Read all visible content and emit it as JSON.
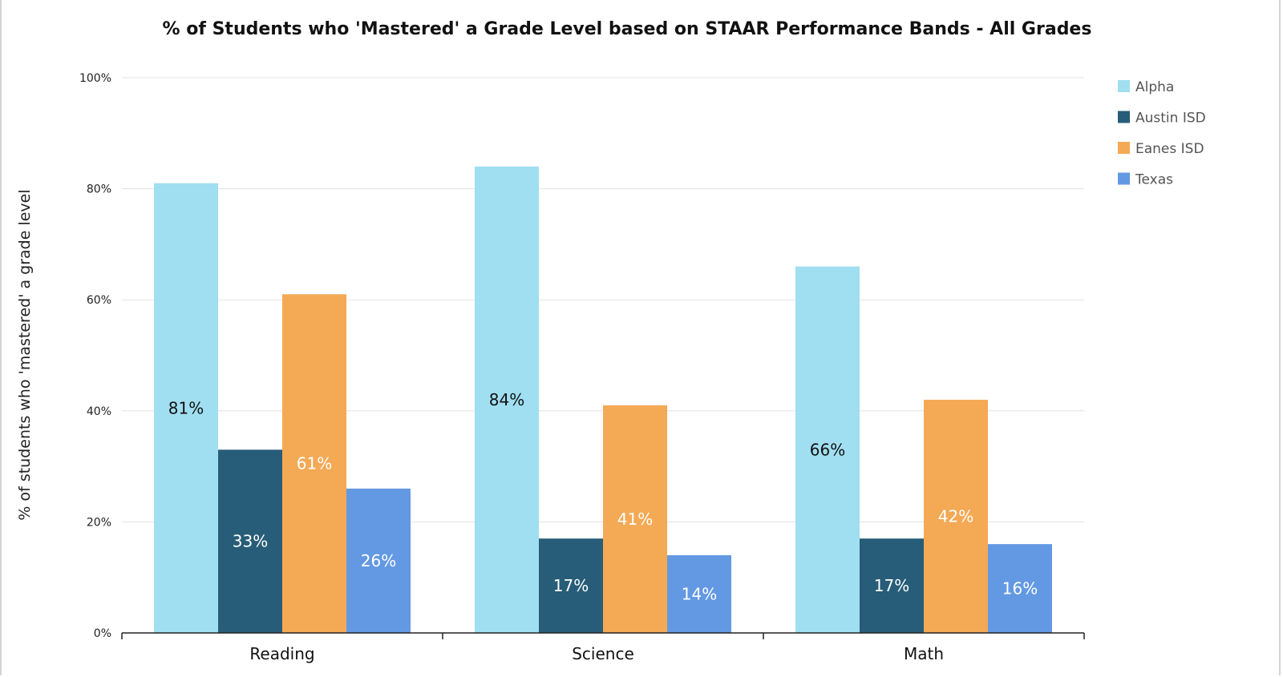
{
  "chart_data": {
    "type": "bar",
    "title": "% of Students who 'Mastered' a Grade Level based on STAAR Performance Bands - All Grades",
    "xlabel": "",
    "ylabel": "% of students who 'mastered' a grade level",
    "ylim": [
      0,
      100
    ],
    "yticks": [
      0,
      20,
      40,
      60,
      80,
      100
    ],
    "ytick_labels": [
      "0%",
      "20%",
      "40%",
      "60%",
      "80%",
      "100%"
    ],
    "grid": true,
    "legend_position": "top-right",
    "categories": [
      "Reading",
      "Science",
      "Math"
    ],
    "series": [
      {
        "name": "Alpha",
        "color": "#a0dff1",
        "label_color": "#111111",
        "values": [
          81,
          84,
          66
        ],
        "labels": [
          "81%",
          "84%",
          "66%"
        ]
      },
      {
        "name": "Austin ISD",
        "color": "#275d78",
        "label_color": "#ffffff",
        "values": [
          33,
          17,
          17
        ],
        "labels": [
          "33%",
          "17%",
          "17%"
        ]
      },
      {
        "name": "Eanes ISD",
        "color": "#f4a955",
        "label_color": "#ffffff",
        "values": [
          61,
          41,
          42
        ],
        "labels": [
          "61%",
          "41%",
          "42%"
        ]
      },
      {
        "name": "Texas",
        "color": "#6399e3",
        "label_color": "#ffffff",
        "values": [
          26,
          14,
          16
        ],
        "labels": [
          "26%",
          "14%",
          "16%"
        ]
      }
    ]
  }
}
